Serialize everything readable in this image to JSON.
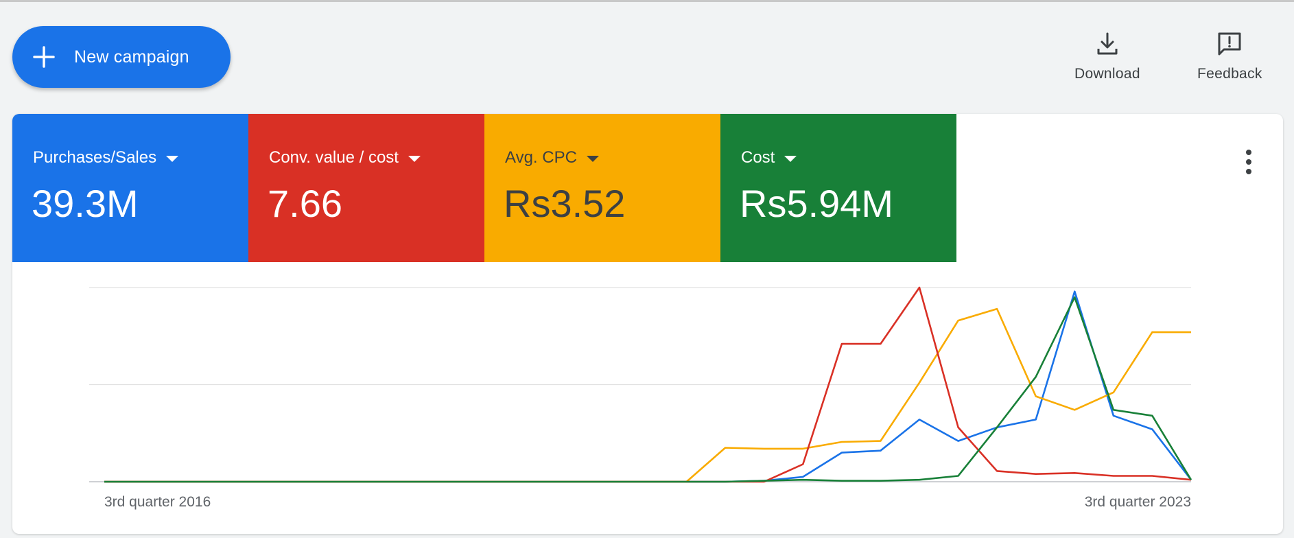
{
  "toolbar": {
    "new_campaign_label": "New campaign",
    "download_label": "Download",
    "feedback_label": "Feedback"
  },
  "metrics": [
    {
      "name": "Purchases/Sales",
      "value": "39.3M",
      "color": "#1a73e8"
    },
    {
      "name": "Conv. value / cost",
      "value": "7.66",
      "color": "#d93025"
    },
    {
      "name": "Avg. CPC",
      "value": "Rs3.52",
      "color": "#f9ab00"
    },
    {
      "name": "Cost",
      "value": "Rs5.94M",
      "color": "#188038"
    }
  ],
  "chart_data": {
    "type": "line",
    "x_start_label": "3rd quarter 2016",
    "x_end_label": "3rd quarter 2023",
    "x": [
      "Q3 2016",
      "Q4 2016",
      "Q1 2017",
      "Q2 2017",
      "Q3 2017",
      "Q4 2017",
      "Q1 2018",
      "Q2 2018",
      "Q3 2018",
      "Q4 2018",
      "Q1 2019",
      "Q2 2019",
      "Q3 2019",
      "Q4 2019",
      "Q1 2020",
      "Q2 2020",
      "Q3 2020",
      "Q4 2020",
      "Q1 2021",
      "Q2 2021",
      "Q3 2021",
      "Q4 2021",
      "Q1 2022",
      "Q2 2022",
      "Q3 2022",
      "Q4 2022",
      "Q1 2023",
      "Q2 2023",
      "Q3 2023"
    ],
    "ylim": [
      0,
      100
    ],
    "grid": true,
    "series": [
      {
        "color": "#1a73e8",
        "values": [
          0,
          0,
          0,
          0,
          0,
          0,
          0,
          0,
          0,
          0,
          0,
          0,
          0,
          0,
          0,
          0,
          0,
          0.5,
          2.5,
          15,
          16,
          32,
          21,
          28,
          32,
          98,
          34,
          27,
          1
        ]
      },
      {
        "color": "#d93025",
        "values": [
          0,
          0,
          0,
          0,
          0,
          0,
          0,
          0,
          0,
          0,
          0,
          0,
          0,
          0,
          0,
          0,
          0,
          0,
          9,
          71,
          71,
          100,
          28,
          5.5,
          4,
          4.5,
          3,
          3,
          1
        ]
      },
      {
        "color": "#f9ab00",
        "values": [
          0,
          0,
          0,
          0,
          0,
          0,
          0,
          0,
          0,
          0,
          0,
          0,
          0,
          0,
          0,
          0,
          17.5,
          17,
          17,
          20.5,
          21,
          51,
          83,
          89,
          44,
          37,
          46,
          77,
          null
        ]
      },
      {
        "color": "#188038",
        "values": [
          0,
          0,
          0,
          0,
          0,
          0,
          0,
          0,
          0,
          0,
          0,
          0,
          0,
          0,
          0,
          0,
          0,
          0.5,
          1,
          0.5,
          0.5,
          1,
          3,
          28,
          54,
          95,
          37,
          34,
          1
        ]
      }
    ]
  }
}
